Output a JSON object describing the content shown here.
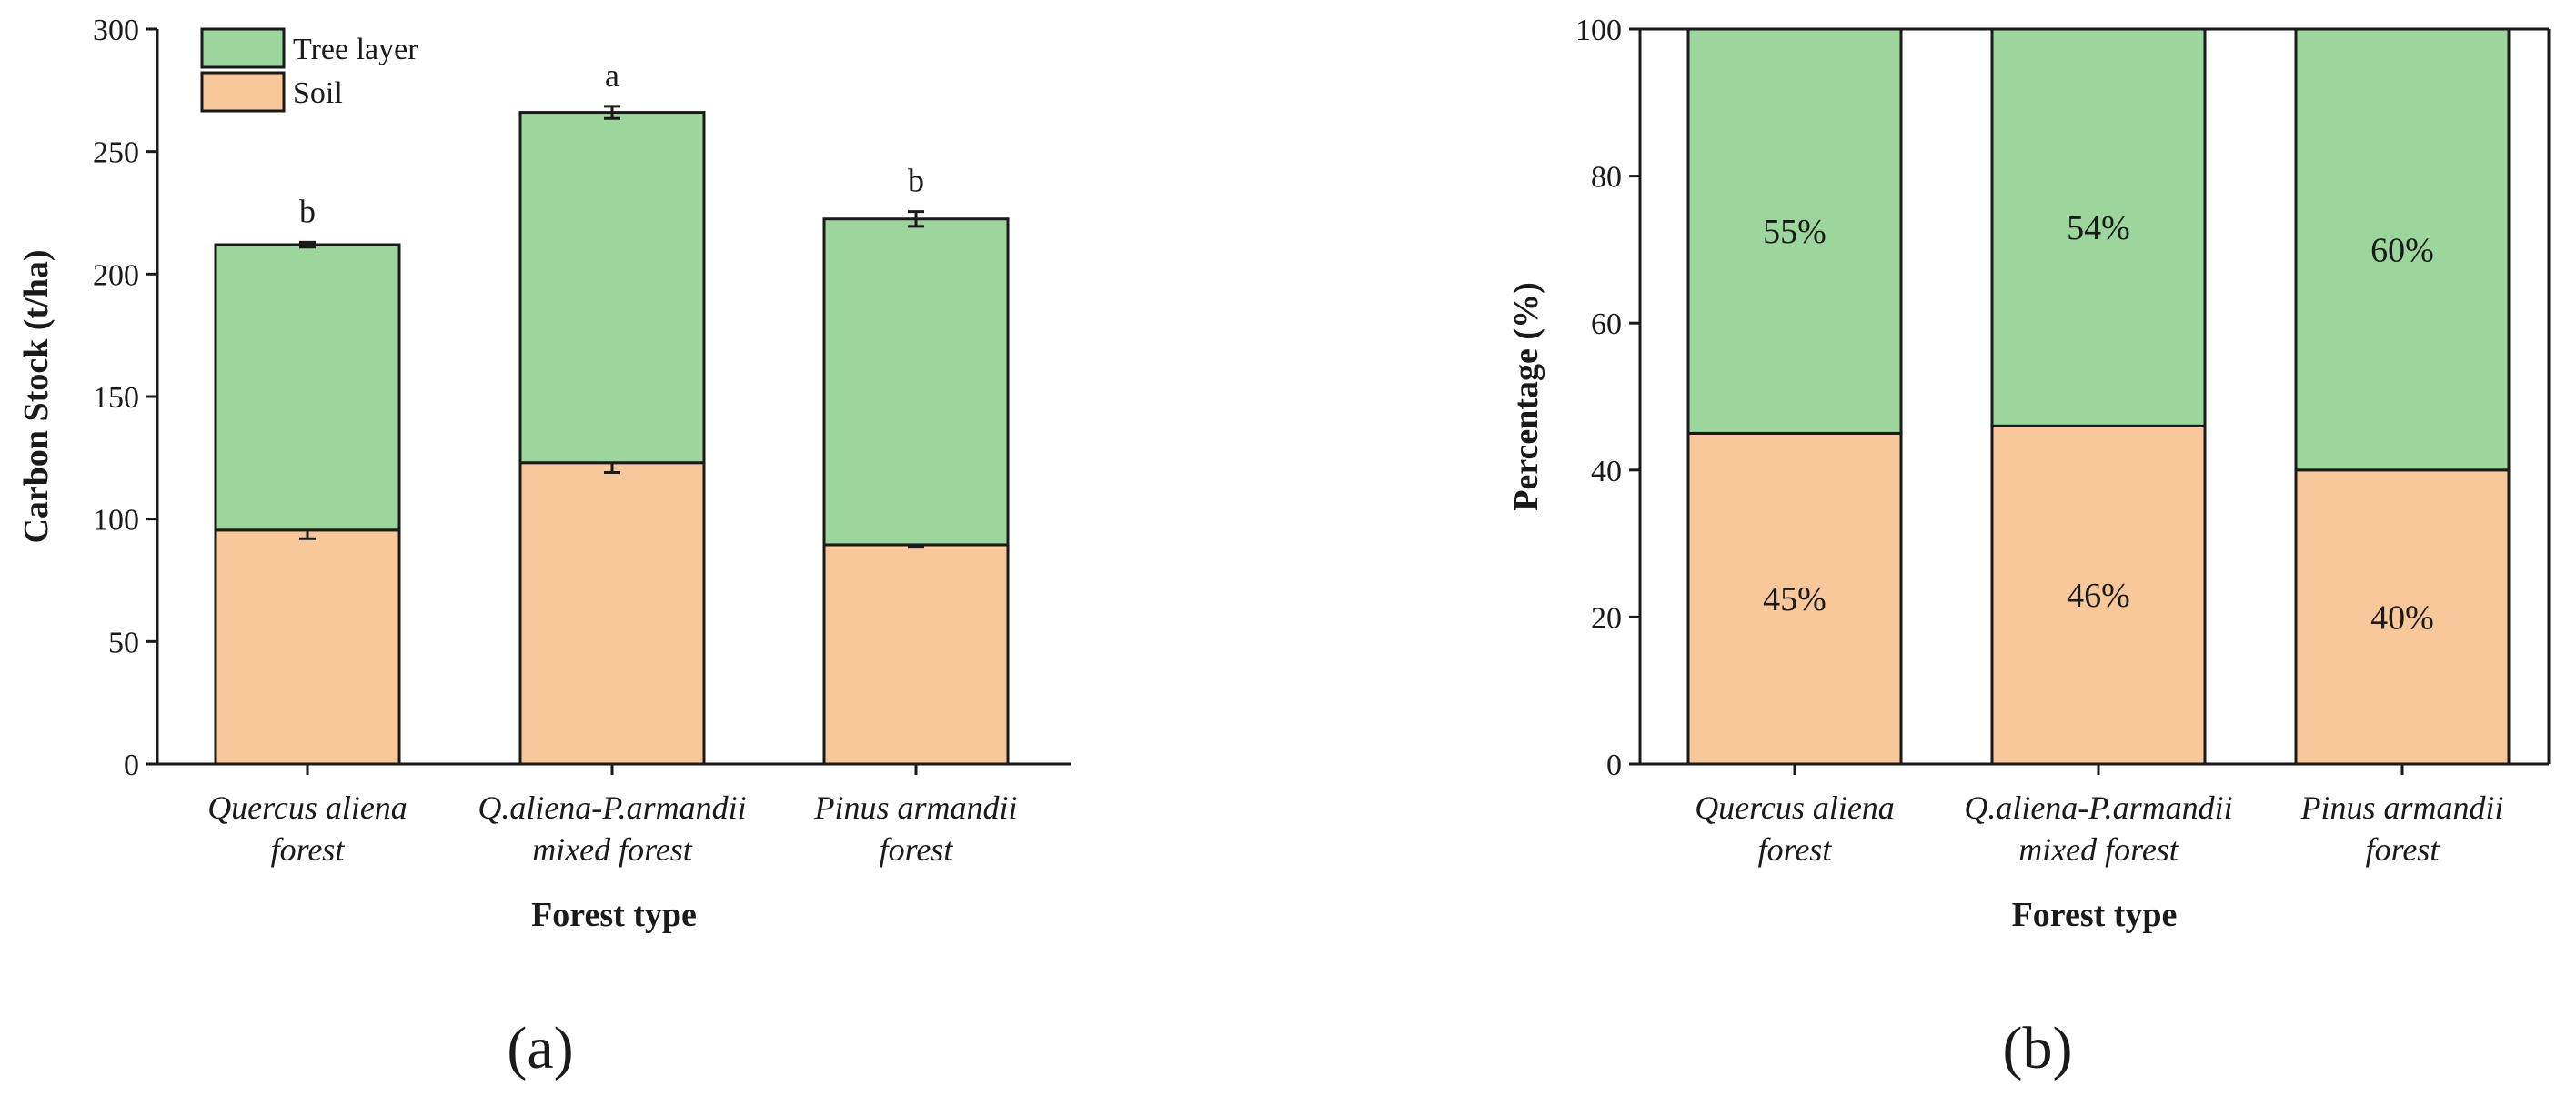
{
  "colors": {
    "tree": "#9dd69d",
    "soil": "#f8c89b",
    "outline": "#1a1a1a"
  },
  "chart_data": [
    {
      "panel": "(a)",
      "type": "bar",
      "stacked": true,
      "ylabel": "Carbon Stock (t/ha)",
      "xlabel": "Forest type",
      "ylim": [
        0,
        300
      ],
      "yticks": [
        0,
        50,
        100,
        150,
        200,
        250,
        300
      ],
      "categories": [
        [
          "Quercus aliena",
          "forest"
        ],
        [
          "Q.aliena-P.armandii",
          "mixed forest"
        ],
        [
          "Pinus armandii",
          "forest"
        ]
      ],
      "series": [
        {
          "name": "Soil",
          "color_key": "soil",
          "values": [
            95.5,
            123,
            89.5
          ],
          "errors": [
            3.5,
            4,
            1
          ]
        },
        {
          "name": "Tree layer",
          "color_key": "tree",
          "values": [
            116.5,
            143,
            133
          ],
          "errors": [
            1,
            2.5,
            3
          ]
        }
      ],
      "totals": [
        212,
        266,
        222.5
      ],
      "significance": [
        "b",
        "a",
        "b"
      ],
      "legend": {
        "position": "top-left",
        "entries": [
          "Tree layer",
          "Soil"
        ]
      }
    },
    {
      "panel": "(b)",
      "type": "bar",
      "stacked": true,
      "ylabel": "Percentage (%)",
      "xlabel": "Forest type",
      "ylim": [
        0,
        100
      ],
      "yticks": [
        0,
        20,
        40,
        60,
        80,
        100
      ],
      "categories": [
        [
          "Quercus aliena",
          "forest"
        ],
        [
          "Q.aliena-P.armandii",
          "mixed forest"
        ],
        [
          "Pinus armandii",
          "forest"
        ]
      ],
      "series": [
        {
          "name": "Soil",
          "color_key": "soil",
          "values": [
            45,
            46,
            40
          ],
          "labels": [
            "45%",
            "46%",
            "40%"
          ]
        },
        {
          "name": "Tree layer",
          "color_key": "tree",
          "values": [
            55,
            54,
            60
          ],
          "labels": [
            "55%",
            "54%",
            "60%"
          ]
        }
      ]
    }
  ]
}
